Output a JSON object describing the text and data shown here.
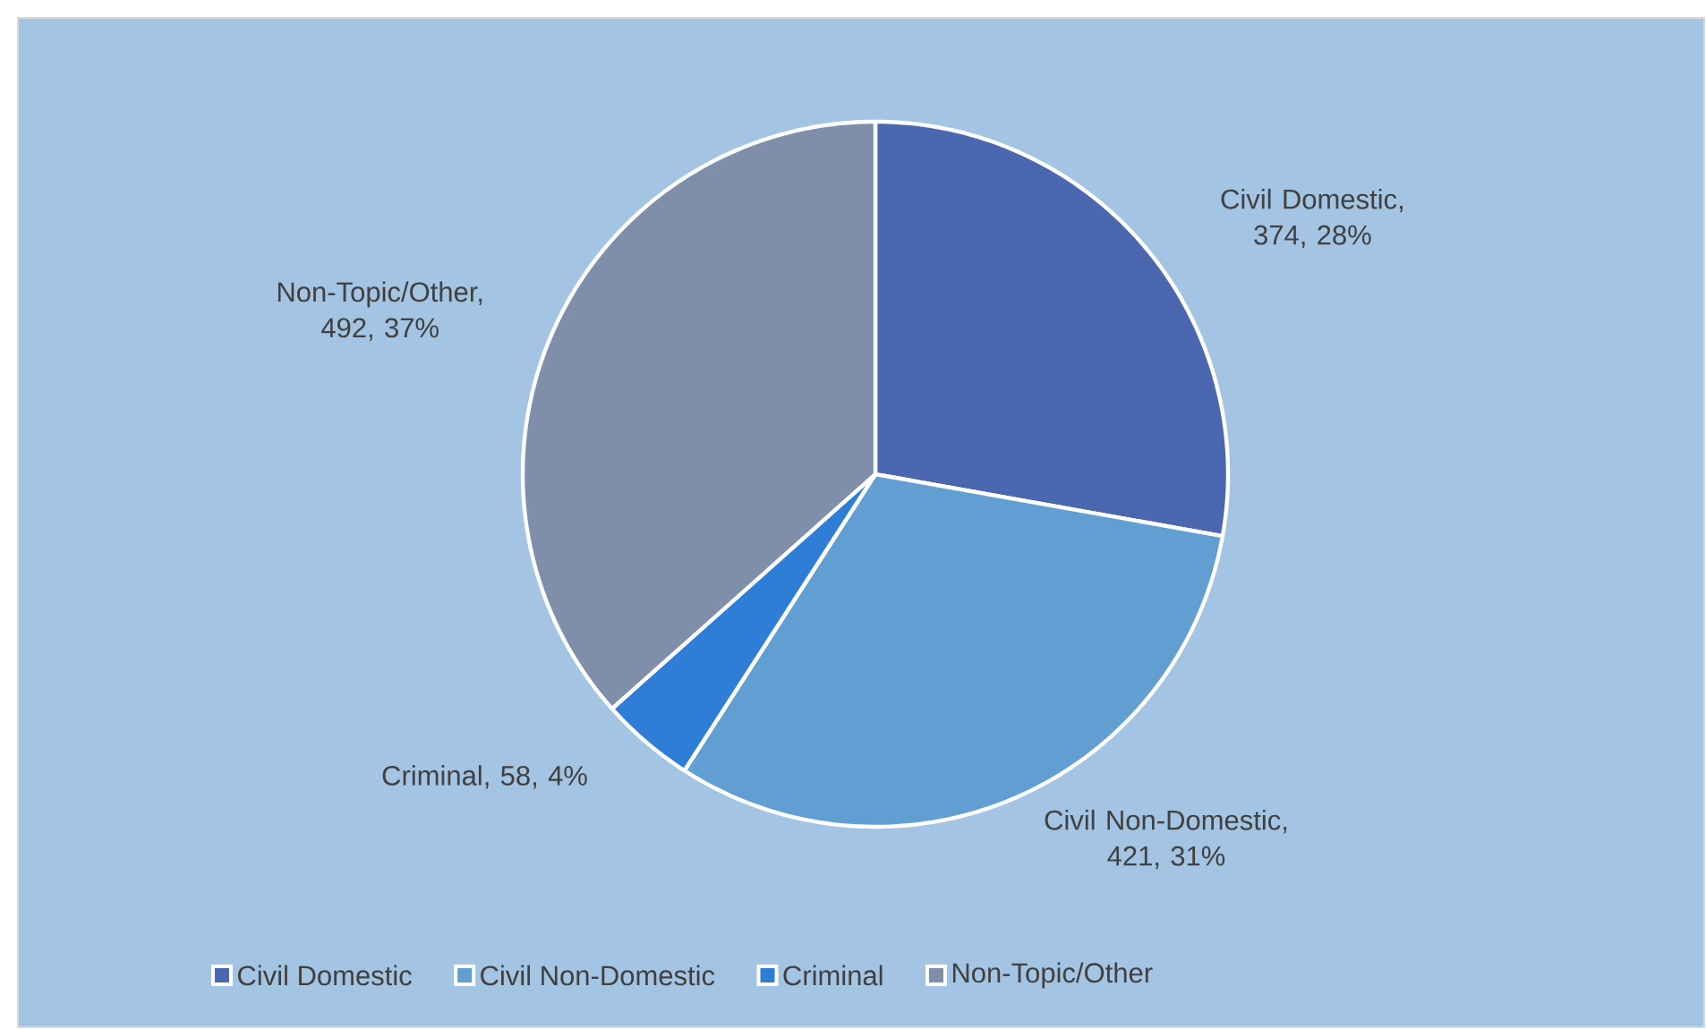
{
  "chart_data": {
    "type": "pie",
    "categories": [
      "Civil Domestic",
      "Civil Non-Domestic",
      "Criminal",
      "Non-Topic/Other"
    ],
    "values": [
      374,
      421,
      58,
      492
    ],
    "colors": [
      "#4a67b0",
      "#619fd3",
      "#2e7dd6",
      "#7f8faa"
    ],
    "value_labels": [
      "Civil Domestic, 374, 28%",
      "Civil Non-Domestic, 421, 31%",
      "Criminal, 58, 4%",
      "Non-Topic/Other, 492, 37%"
    ],
    "legend": "bottom"
  }
}
